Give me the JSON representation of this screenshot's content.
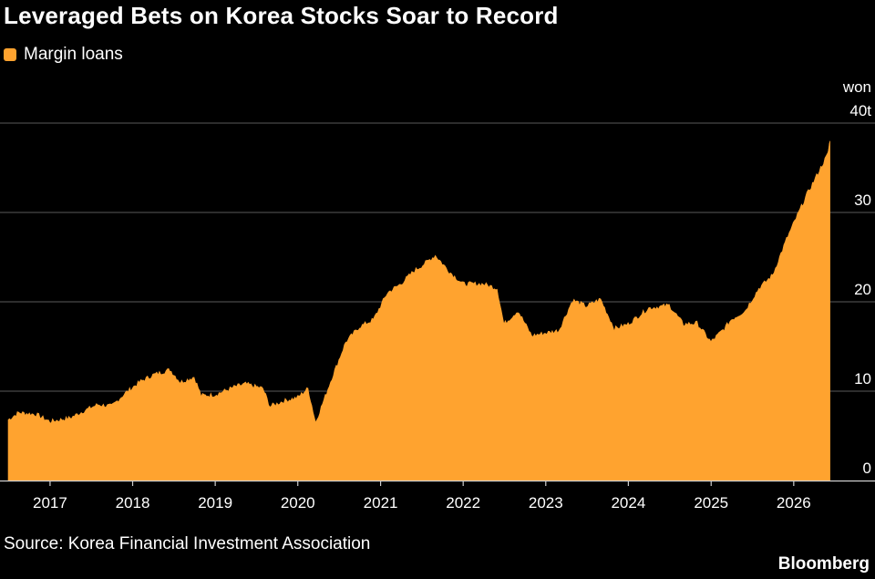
{
  "header": {
    "title": "Leveraged Bets on Korea Stocks Soar to Record"
  },
  "legend": {
    "label": "Margin loans",
    "color": "#ffa32f"
  },
  "footer": {
    "source": "Source: Korea Financial Investment Association",
    "brand": "Bloomberg"
  },
  "chart_data": {
    "type": "area",
    "title": "Leveraged Bets on Korea Stocks Soar to Record",
    "xlabel": "",
    "ylabel": "won",
    "unit_label": "won",
    "series": [
      {
        "name": "Margin loans",
        "color": "#ffa32f",
        "points": [
          [
            "2016-06-30",
            6.8
          ],
          [
            "2016-08-15",
            7.6
          ],
          [
            "2016-10-31",
            7.4
          ],
          [
            "2016-12-31",
            6.6
          ],
          [
            "2017-03-31",
            7.0
          ],
          [
            "2017-05-31",
            7.8
          ],
          [
            "2017-07-31",
            8.5
          ],
          [
            "2017-09-30",
            8.3
          ],
          [
            "2017-11-30",
            9.8
          ],
          [
            "2018-01-31",
            11.0
          ],
          [
            "2018-03-31",
            11.8
          ],
          [
            "2018-06-15",
            12.4
          ],
          [
            "2018-07-31",
            11.0
          ],
          [
            "2018-09-30",
            11.6
          ],
          [
            "2018-10-31",
            9.5
          ],
          [
            "2018-12-31",
            9.6
          ],
          [
            "2019-03-31",
            10.5
          ],
          [
            "2019-05-15",
            10.8
          ],
          [
            "2019-07-31",
            10.3
          ],
          [
            "2019-08-31",
            8.3
          ],
          [
            "2019-10-31",
            8.9
          ],
          [
            "2019-12-31",
            9.3
          ],
          [
            "2020-02-15",
            10.3
          ],
          [
            "2020-03-20",
            6.5
          ],
          [
            "2020-05-31",
            11.5
          ],
          [
            "2020-07-31",
            15.5
          ],
          [
            "2020-09-30",
            17.2
          ],
          [
            "2020-11-30",
            18.0
          ],
          [
            "2021-01-31",
            21.0
          ],
          [
            "2021-03-31",
            22.0
          ],
          [
            "2021-05-31",
            23.5
          ],
          [
            "2021-06-30",
            24.0
          ],
          [
            "2021-08-31",
            25.2
          ],
          [
            "2021-10-31",
            23.4
          ],
          [
            "2021-12-31",
            22.0
          ],
          [
            "2022-03-31",
            22.0
          ],
          [
            "2022-05-31",
            21.5
          ],
          [
            "2022-06-30",
            17.5
          ],
          [
            "2022-08-31",
            19.0
          ],
          [
            "2022-10-31",
            16.2
          ],
          [
            "2022-12-31",
            16.5
          ],
          [
            "2023-02-28",
            16.8
          ],
          [
            "2023-04-30",
            20.2
          ],
          [
            "2023-06-30",
            19.5
          ],
          [
            "2023-08-31",
            20.3
          ],
          [
            "2023-10-31",
            17.0
          ],
          [
            "2023-12-31",
            17.5
          ],
          [
            "2024-03-31",
            19.3
          ],
          [
            "2024-06-30",
            19.6
          ],
          [
            "2024-08-31",
            17.5
          ],
          [
            "2024-10-31",
            17.6
          ],
          [
            "2024-12-31",
            15.5
          ],
          [
            "2025-02-28",
            17.0
          ],
          [
            "2025-03-31",
            18.0
          ],
          [
            "2025-05-31",
            19.0
          ],
          [
            "2025-07-31",
            21.5
          ],
          [
            "2025-09-30",
            23.0
          ],
          [
            "2025-11-30",
            27.0
          ],
          [
            "2026-02-28",
            32.0
          ],
          [
            "2026-03-31",
            33.5
          ],
          [
            "2026-04-30",
            35.0
          ],
          [
            "2026-05-31",
            36.5
          ],
          [
            "2026-06-10",
            38.0
          ]
        ]
      }
    ],
    "y_ticks": [
      {
        "value": 0,
        "label": "0"
      },
      {
        "value": 10,
        "label": "10"
      },
      {
        "value": 20,
        "label": "20"
      },
      {
        "value": 30,
        "label": "30"
      },
      {
        "value": 40,
        "label": "40t"
      }
    ],
    "x_ticks": [
      {
        "date": "2017-01-01",
        "label": "2017"
      },
      {
        "date": "2018-01-01",
        "label": "2018"
      },
      {
        "date": "2019-01-01",
        "label": "2019"
      },
      {
        "date": "2020-01-01",
        "label": "2020"
      },
      {
        "date": "2021-01-01",
        "label": "2021"
      },
      {
        "date": "2022-01-01",
        "label": "2022"
      },
      {
        "date": "2023-01-01",
        "label": "2023"
      },
      {
        "date": "2024-01-01",
        "label": "2024"
      },
      {
        "date": "2025-01-01",
        "label": "2025"
      },
      {
        "date": "2026-01-01",
        "label": "2026"
      }
    ],
    "xlim": [
      "2016-06-30",
      "2026-07-10"
    ],
    "ylim": [
      0,
      40
    ],
    "grid": true,
    "legend_position": "top-left"
  }
}
